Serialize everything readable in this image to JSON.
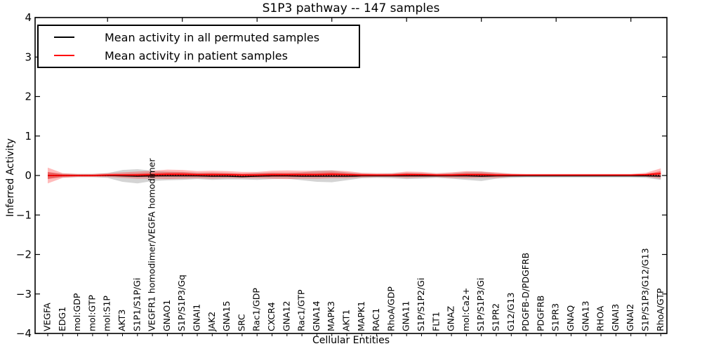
{
  "title": "S1P3 pathway -- 147 samples",
  "legend": {
    "items": [
      {
        "label": "Mean activity in all permuted samples",
        "color": "#000000"
      },
      {
        "label": "Mean activity in patient samples",
        "color": "#ff0000"
      }
    ]
  },
  "chart_data": {
    "type": "line",
    "title": "S1P3 pathway -- 147 samples",
    "xlabel": "Cellular Entities",
    "ylabel": "Inferred Activity",
    "ylim": [
      -4,
      4
    ],
    "yticks": [
      4,
      3,
      2,
      1,
      0,
      -1,
      -2,
      -3,
      -4
    ],
    "grid": false,
    "legend_position": "upper left",
    "zero_line": true,
    "colors": {
      "permuted_line": "#000000",
      "patient_line": "#ff0000",
      "permuted_band": "rgba(120,120,120,0.32)",
      "patient_band_outer": "rgba(255,30,30,0.30)",
      "patient_band_inner": "rgba(255,0,0,0.38)"
    },
    "categories": [
      "VEGFA",
      "EDG1",
      "mol:GDP",
      "mol:GTP",
      "mol:S1P",
      "AKT3",
      "S1P1/S1P/Gi",
      "VEGFR1 homodimer/VEGFA homodimer",
      "GNAO1",
      "S1P/S1P3/Gq",
      "GNAI1",
      "JAK2",
      "GNA15",
      "SRC",
      "Rac1/GDP",
      "CXCR4",
      "GNA12",
      "Rac1/GTP",
      "GNA14",
      "MAPK3",
      "AKT1",
      "MAPK1",
      "RAC1",
      "RhoA/GDP",
      "GNA11",
      "S1P/S1P2/Gi",
      "FLT1",
      "GNAZ",
      "mol:Ca2+",
      "S1P/S1P3/Gi",
      "S1PR2",
      "G12/G13",
      "PDGFB-D/PDGFRB",
      "PDGFRB",
      "S1PR3",
      "GNAQ",
      "GNA13",
      "RHOA",
      "GNAI3",
      "GNAI2",
      "S1P/S1P3/G12/G13",
      "RhoA/GTP"
    ],
    "series": [
      {
        "name": "Mean activity in all permuted samples",
        "color": "#000000",
        "values": [
          0,
          0,
          0,
          0,
          0,
          -0.01,
          -0.02,
          -0.01,
          -0.01,
          -0.01,
          -0.01,
          -0.02,
          -0.02,
          -0.03,
          -0.02,
          -0.01,
          -0.01,
          -0.02,
          -0.02,
          -0.02,
          -0.02,
          -0.01,
          -0.01,
          -0.01,
          -0.01,
          -0.01,
          -0.01,
          -0.01,
          -0.01,
          -0.02,
          -0.01,
          -0.01,
          -0.01,
          -0.01,
          -0.01,
          -0.01,
          -0.01,
          -0.01,
          -0.01,
          -0.01,
          -0.01,
          -0.02
        ]
      },
      {
        "name": "Mean activity in patient samples",
        "color": "#ff0000",
        "values": [
          0,
          0,
          0,
          0,
          0.01,
          0.01,
          0.01,
          0.02,
          0.03,
          0.03,
          0.02,
          0.02,
          0.02,
          0.01,
          0.01,
          0.02,
          0.02,
          0.02,
          0.02,
          0.03,
          0.02,
          0.01,
          0.01,
          0.01,
          0.02,
          0.02,
          0.01,
          0.01,
          0.02,
          0.02,
          0.01,
          0.01,
          0.01,
          0.01,
          0.01,
          0.01,
          0.01,
          0.01,
          0.01,
          0.01,
          0.02,
          0.05
        ]
      }
    ],
    "bands": [
      {
        "name": "permuted-std-band",
        "center_series": 0,
        "fill": "rgba(120,120,120,0.32)",
        "half_widths": [
          0.08,
          0.05,
          0.04,
          0.04,
          0.06,
          0.15,
          0.18,
          0.13,
          0.11,
          0.1,
          0.08,
          0.09,
          0.08,
          0.07,
          0.09,
          0.08,
          0.07,
          0.1,
          0.14,
          0.15,
          0.1,
          0.06,
          0.05,
          0.06,
          0.08,
          0.07,
          0.05,
          0.07,
          0.1,
          0.12,
          0.07,
          0.05,
          0.04,
          0.04,
          0.04,
          0.04,
          0.04,
          0.04,
          0.04,
          0.04,
          0.05,
          0.09
        ]
      },
      {
        "name": "patient-std-band",
        "center_series": 1,
        "fill": "rgba(255,30,30,0.30)",
        "half_widths": [
          0.2,
          0.06,
          0.04,
          0.04,
          0.05,
          0.07,
          0.09,
          0.1,
          0.12,
          0.11,
          0.09,
          0.1,
          0.09,
          0.08,
          0.08,
          0.1,
          0.11,
          0.1,
          0.1,
          0.1,
          0.09,
          0.06,
          0.05,
          0.05,
          0.08,
          0.07,
          0.05,
          0.07,
          0.09,
          0.08,
          0.07,
          0.04,
          0.03,
          0.03,
          0.03,
          0.03,
          0.03,
          0.03,
          0.03,
          0.03,
          0.05,
          0.13
        ]
      },
      {
        "name": "patient-sem-band",
        "center_series": 1,
        "fill": "rgba(255,0,0,0.38)",
        "half_widths": [
          0.09,
          0.03,
          0.02,
          0.02,
          0.02,
          0.03,
          0.04,
          0.05,
          0.05,
          0.05,
          0.04,
          0.05,
          0.04,
          0.04,
          0.04,
          0.05,
          0.05,
          0.05,
          0.05,
          0.05,
          0.04,
          0.03,
          0.02,
          0.02,
          0.04,
          0.03,
          0.02,
          0.03,
          0.04,
          0.04,
          0.03,
          0.02,
          0.015,
          0.015,
          0.015,
          0.015,
          0.015,
          0.015,
          0.015,
          0.015,
          0.02,
          0.06
        ]
      }
    ]
  }
}
